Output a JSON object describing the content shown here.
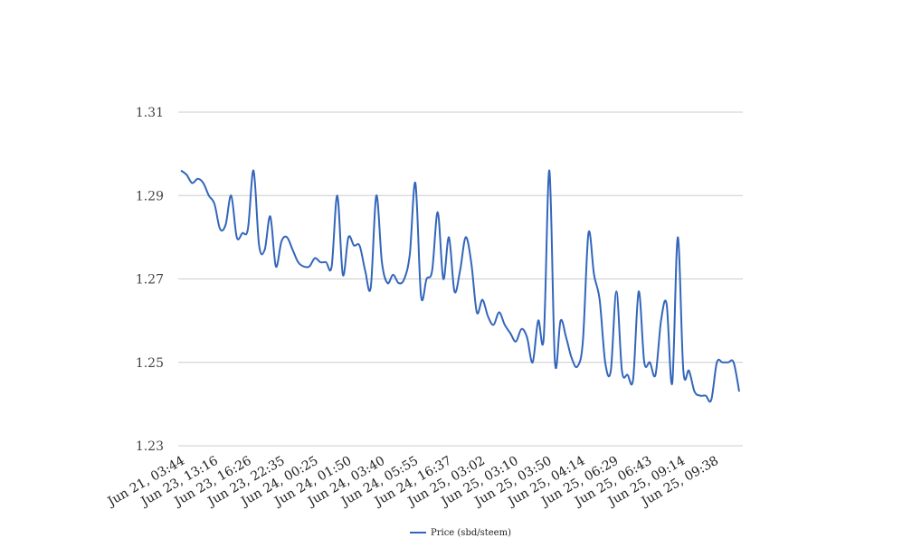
{
  "chart_data": {
    "type": "line",
    "title": "",
    "xlabel": "",
    "ylabel": "",
    "ylim": [
      1.23,
      1.31
    ],
    "yticks": [
      1.23,
      1.25,
      1.27,
      1.29,
      1.31
    ],
    "ytick_labels": [
      "1.23",
      "1.25",
      "1.27",
      "1.29",
      "1.31"
    ],
    "xtick_labels": [
      "Jun 21, 03:44",
      "Jun 23, 13:16",
      "Jun 23, 16:26",
      "Jun 23, 22:35",
      "Jun 24, 00:25",
      "Jun 24, 01:50",
      "Jun 24, 03:40",
      "Jun 24, 05:55",
      "Jun 24, 16:37",
      "Jun 25, 03:02",
      "Jun 25, 03:10",
      "Jun 25, 03:50",
      "Jun 25, 04:14",
      "Jun 25, 06:29",
      "Jun 25, 06:43",
      "Jun 25, 09:14",
      "Jun 25, 09:38"
    ],
    "grid": true,
    "legend_position": "bottom",
    "series": [
      {
        "name": "Price (sbd/steem)",
        "color": "#3366bb",
        "values": [
          1.296,
          1.295,
          1.293,
          1.294,
          1.293,
          1.29,
          1.288,
          1.282,
          1.283,
          1.29,
          1.28,
          1.281,
          1.282,
          1.296,
          1.278,
          1.277,
          1.285,
          1.273,
          1.279,
          1.28,
          1.277,
          1.274,
          1.273,
          1.273,
          1.275,
          1.274,
          1.274,
          1.273,
          1.29,
          1.271,
          1.28,
          1.278,
          1.278,
          1.272,
          1.268,
          1.29,
          1.274,
          1.269,
          1.271,
          1.269,
          1.27,
          1.276,
          1.293,
          1.266,
          1.27,
          1.272,
          1.286,
          1.27,
          1.28,
          1.267,
          1.272,
          1.28,
          1.274,
          1.262,
          1.265,
          1.261,
          1.259,
          1.262,
          1.259,
          1.257,
          1.255,
          1.258,
          1.256,
          1.25,
          1.26,
          1.256,
          1.296,
          1.25,
          1.26,
          1.256,
          1.251,
          1.249,
          1.255,
          1.281,
          1.271,
          1.265,
          1.25,
          1.248,
          1.267,
          1.248,
          1.247,
          1.246,
          1.267,
          1.25,
          1.25,
          1.247,
          1.26,
          1.264,
          1.245,
          1.28,
          1.248,
          1.248,
          1.243,
          1.242,
          1.242,
          1.241,
          1.25,
          1.25,
          1.25,
          1.25,
          1.243
        ]
      }
    ]
  }
}
